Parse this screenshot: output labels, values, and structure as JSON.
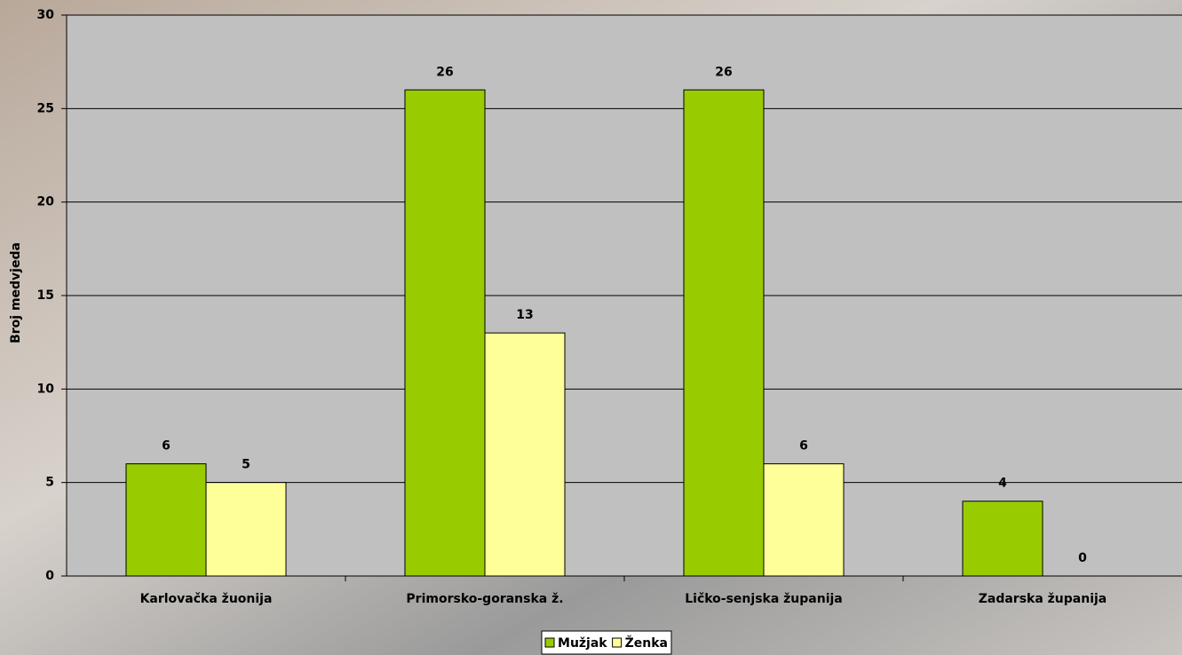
{
  "chart_data": {
    "type": "bar",
    "ylabel": "Broj medvjeda",
    "categories": [
      "Karlovačka žuonija",
      "Primorsko-goranska ž.",
      "Ličko-senjska županija",
      "Zadarska županija"
    ],
    "series": [
      {
        "name": "Mužjak",
        "color": "#99cc00",
        "values": [
          6,
          26,
          26,
          4
        ]
      },
      {
        "name": "Ženka",
        "color": "#ffff99",
        "values": [
          5,
          13,
          6,
          0
        ]
      }
    ],
    "ylim": [
      0,
      30
    ],
    "yticks": [
      0,
      5,
      10,
      15,
      20,
      25,
      30
    ],
    "grid": true,
    "legend": "bottom"
  }
}
